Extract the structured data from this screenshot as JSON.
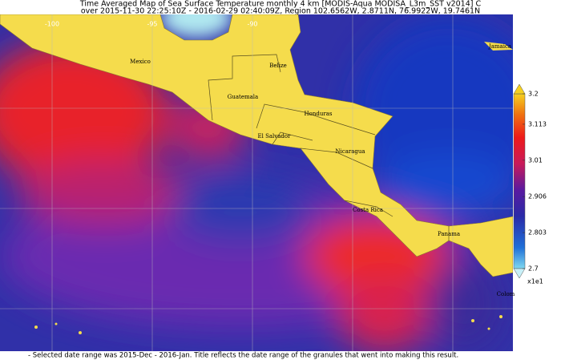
{
  "title": {
    "line1": "Time Averaged Map of Sea Surface Temperature monthly 4 km [MODIS-Aqua MODISA_L3m_SST v2014] C",
    "line2": "over 2015-11-30 22:25:10Z - 2016-02-29 02:40:09Z, Region 102.6562W, 2.8711N, 76.9922W, 19.7461N"
  },
  "map": {
    "longitude_labels": [
      "-100",
      "-95",
      "-90"
    ],
    "countries": [
      "Mexico",
      "Belize",
      "Guatemala",
      "Honduras",
      "El Salvador",
      "Nicaragua",
      "Costa Rica",
      "Panama",
      "Jamaica",
      "Colom"
    ]
  },
  "colorbar": {
    "range": [
      2.7,
      3.2
    ],
    "ticks": [
      3.2,
      3.113,
      3.01,
      2.906,
      2.803,
      2.7
    ],
    "multiplier": "x1e1"
  },
  "footnote": "- Selected date range was 2015-Dec - 2016-Jan. Title reflects the date range of the granules that went into making this result."
}
